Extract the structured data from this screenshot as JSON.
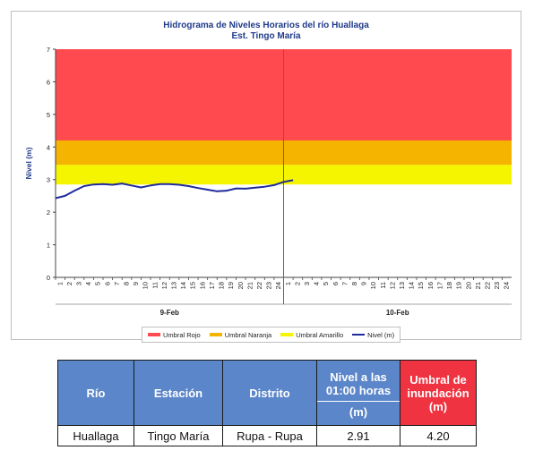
{
  "chart_data": {
    "type": "line",
    "title": "Hidrograma de Niveles Horarios del río Huallaga",
    "subtitle": "Est. Tingo María",
    "ylabel": "Nivel (m)",
    "ylim": [
      0,
      7
    ],
    "yticks": [
      "0",
      "1",
      "2",
      "3",
      "4",
      "5",
      "6",
      "7"
    ],
    "hour_ticks": [
      "1",
      "2",
      "3",
      "4",
      "5",
      "6",
      "7",
      "8",
      "9",
      "10",
      "11",
      "12",
      "13",
      "14",
      "15",
      "16",
      "17",
      "18",
      "19",
      "20",
      "21",
      "22",
      "23",
      "24"
    ],
    "days": [
      "9-Feb",
      "10-Feb"
    ],
    "thresholds": [
      {
        "name": "Umbral Rojo",
        "from": 4.2,
        "to": 7.0,
        "color": "#ff4a4f"
      },
      {
        "name": "Umbral Naranja",
        "from": 3.45,
        "to": 4.2,
        "color": "#f4b400"
      },
      {
        "name": "Umbral Amarillo",
        "from": 2.85,
        "to": 3.45,
        "color": "#f5f500"
      }
    ],
    "series": [
      {
        "name": "Nivel (m)",
        "color": "#1f2a9c",
        "x": [
          0,
          1,
          2,
          3,
          4,
          5,
          6,
          7,
          8,
          9,
          10,
          11,
          12,
          13,
          14,
          15,
          16,
          17,
          18,
          19,
          20,
          21,
          22,
          23,
          24,
          25
        ],
        "values": [
          2.43,
          2.5,
          2.66,
          2.8,
          2.85,
          2.86,
          2.84,
          2.88,
          2.82,
          2.76,
          2.82,
          2.86,
          2.86,
          2.84,
          2.8,
          2.74,
          2.69,
          2.64,
          2.66,
          2.73,
          2.72,
          2.75,
          2.78,
          2.83,
          2.93,
          2.98
        ]
      }
    ],
    "legend_position": "bottom",
    "grid": false
  },
  "legend": {
    "rojo": "Umbral Rojo",
    "naranja": "Umbral Naranja",
    "amarillo": "Umbral Amarillo",
    "nivel": "Nivel (m)",
    "colors": {
      "rojo": "#ff4a4f",
      "naranja": "#f4b400",
      "amarillo": "#f5f500",
      "nivel": "#1f2a9c"
    }
  },
  "table": {
    "headers": {
      "rio": "Río",
      "estacion": "Estación",
      "distrito": "Distrito",
      "nivel_top": "Nivel a las 01:00 horas",
      "nivel_bottom": "(m)",
      "umbral": "Umbral de inundación (m)"
    },
    "row": {
      "rio": "Huallaga",
      "estacion": "Tingo María",
      "distrito": "Rupa - Rupa",
      "nivel": "2.91",
      "umbral": "4.20"
    }
  }
}
